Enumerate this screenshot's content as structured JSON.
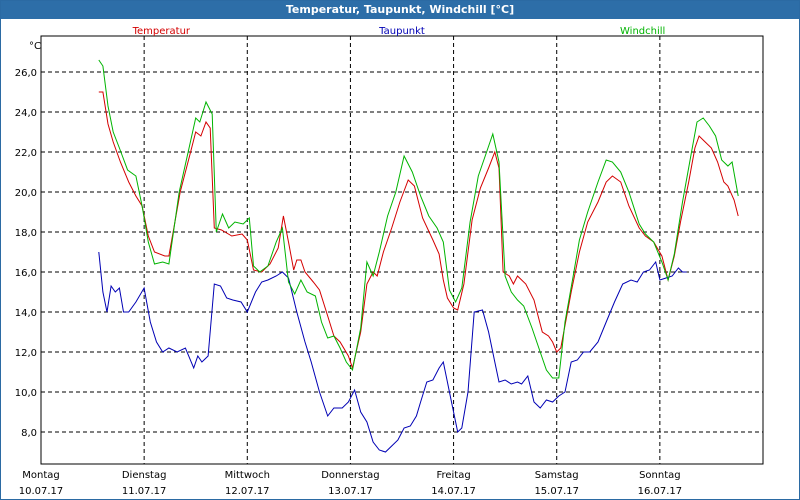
{
  "window": {
    "title": "Temperatur, Taupunkt, Windchill [°C]"
  },
  "chart_data": {
    "type": "line",
    "ylabel": "°C",
    "ylim": [
      6.4,
      27.8
    ],
    "yticks": [
      "8,0",
      "10,0",
      "12,0",
      "14,0",
      "16,0",
      "18,0",
      "20,0",
      "22,0",
      "24,0",
      "26,0"
    ],
    "ytick_values": [
      8,
      10,
      12,
      14,
      16,
      18,
      20,
      22,
      24,
      26
    ],
    "xlim": [
      0,
      7
    ],
    "x_days": [
      {
        "day": "Montag",
        "date": "10.07.17"
      },
      {
        "day": "Dienstag",
        "date": "11.07.17"
      },
      {
        "day": "Mittwoch",
        "date": "12.07.17"
      },
      {
        "day": "Donnerstag",
        "date": "13.07.17"
      },
      {
        "day": "Freitag",
        "date": "14.07.17"
      },
      {
        "day": "Samstag",
        "date": "15.07.17"
      },
      {
        "day": "Sonntag",
        "date": "16.07.17"
      }
    ],
    "grid": true,
    "x_unit": "days since 10.07.17 00:00",
    "series": [
      {
        "name": "Temperatur",
        "color": "#d40000",
        "points": [
          [
            0.56,
            25.0
          ],
          [
            0.6,
            25.0
          ],
          [
            0.65,
            23.4
          ],
          [
            0.7,
            22.5
          ],
          [
            0.77,
            21.5
          ],
          [
            0.85,
            20.5
          ],
          [
            0.92,
            19.8
          ],
          [
            0.98,
            19.3
          ],
          [
            1.04,
            17.8
          ],
          [
            1.1,
            17.0
          ],
          [
            1.2,
            16.8
          ],
          [
            1.24,
            16.8
          ],
          [
            1.35,
            20.0
          ],
          [
            1.45,
            22.0
          ],
          [
            1.5,
            23.0
          ],
          [
            1.55,
            22.8
          ],
          [
            1.6,
            23.5
          ],
          [
            1.64,
            23.2
          ],
          [
            1.68,
            18.2
          ],
          [
            1.75,
            18.1
          ],
          [
            1.85,
            17.8
          ],
          [
            1.95,
            17.9
          ],
          [
            2.0,
            17.6
          ],
          [
            2.06,
            16.1
          ],
          [
            2.14,
            16.0
          ],
          [
            2.22,
            16.4
          ],
          [
            2.3,
            17.2
          ],
          [
            2.35,
            18.8
          ],
          [
            2.4,
            17.5
          ],
          [
            2.45,
            16.1
          ],
          [
            2.48,
            16.6
          ],
          [
            2.52,
            16.6
          ],
          [
            2.56,
            16.0
          ],
          [
            2.64,
            15.5
          ],
          [
            2.7,
            15.1
          ],
          [
            2.78,
            13.8
          ],
          [
            2.84,
            12.8
          ],
          [
            2.9,
            12.5
          ],
          [
            2.98,
            11.8
          ],
          [
            3.02,
            11.2
          ],
          [
            3.1,
            13.0
          ],
          [
            3.16,
            15.4
          ],
          [
            3.22,
            16.0
          ],
          [
            3.26,
            15.8
          ],
          [
            3.32,
            17.0
          ],
          [
            3.4,
            18.2
          ],
          [
            3.48,
            19.5
          ],
          [
            3.56,
            20.6
          ],
          [
            3.62,
            20.3
          ],
          [
            3.7,
            18.7
          ],
          [
            3.8,
            17.6
          ],
          [
            3.86,
            16.9
          ],
          [
            3.9,
            15.6
          ],
          [
            3.94,
            14.7
          ],
          [
            4.0,
            14.2
          ],
          [
            4.04,
            14.1
          ],
          [
            4.1,
            15.4
          ],
          [
            4.18,
            18.6
          ],
          [
            4.26,
            20.2
          ],
          [
            4.34,
            21.2
          ],
          [
            4.4,
            22.0
          ],
          [
            4.44,
            21.2
          ],
          [
            4.48,
            16.0
          ],
          [
            4.54,
            15.8
          ],
          [
            4.58,
            15.4
          ],
          [
            4.62,
            15.8
          ],
          [
            4.7,
            15.4
          ],
          [
            4.78,
            14.6
          ],
          [
            4.82,
            13.8
          ],
          [
            4.86,
            13.0
          ],
          [
            4.92,
            12.8
          ],
          [
            4.96,
            12.5
          ],
          [
            5.0,
            12.0
          ],
          [
            5.04,
            12.2
          ],
          [
            5.14,
            15.0
          ],
          [
            5.22,
            17.0
          ],
          [
            5.3,
            18.5
          ],
          [
            5.4,
            19.5
          ],
          [
            5.48,
            20.5
          ],
          [
            5.54,
            20.8
          ],
          [
            5.62,
            20.5
          ],
          [
            5.7,
            19.3
          ],
          [
            5.8,
            18.2
          ],
          [
            5.86,
            17.8
          ],
          [
            5.94,
            17.5
          ],
          [
            6.02,
            16.8
          ],
          [
            6.08,
            15.6
          ],
          [
            6.14,
            16.8
          ],
          [
            6.2,
            18.5
          ],
          [
            6.28,
            20.5
          ],
          [
            6.34,
            22.2
          ],
          [
            6.38,
            22.8
          ],
          [
            6.44,
            22.5
          ],
          [
            6.5,
            22.2
          ],
          [
            6.56,
            21.5
          ],
          [
            6.62,
            20.5
          ],
          [
            6.66,
            20.3
          ],
          [
            6.72,
            19.6
          ],
          [
            6.76,
            18.8
          ]
        ]
      },
      {
        "name": "Taupunkt",
        "color": "#0000b4",
        "points": [
          [
            0.56,
            17.0
          ],
          [
            0.6,
            15.0
          ],
          [
            0.64,
            14.0
          ],
          [
            0.68,
            15.3
          ],
          [
            0.72,
            15.0
          ],
          [
            0.76,
            15.2
          ],
          [
            0.8,
            14.0
          ],
          [
            0.85,
            14.0
          ],
          [
            0.92,
            14.5
          ],
          [
            1.0,
            15.2
          ],
          [
            1.06,
            13.5
          ],
          [
            1.12,
            12.5
          ],
          [
            1.18,
            12.0
          ],
          [
            1.24,
            12.2
          ],
          [
            1.32,
            12.0
          ],
          [
            1.4,
            12.2
          ],
          [
            1.48,
            11.2
          ],
          [
            1.52,
            11.8
          ],
          [
            1.56,
            11.5
          ],
          [
            1.62,
            11.8
          ],
          [
            1.68,
            15.4
          ],
          [
            1.74,
            15.3
          ],
          [
            1.8,
            14.7
          ],
          [
            1.86,
            14.6
          ],
          [
            1.94,
            14.5
          ],
          [
            2.0,
            14.0
          ],
          [
            2.08,
            15.0
          ],
          [
            2.14,
            15.5
          ],
          [
            2.2,
            15.6
          ],
          [
            2.28,
            15.8
          ],
          [
            2.34,
            16.0
          ],
          [
            2.4,
            15.7
          ],
          [
            2.48,
            14.0
          ],
          [
            2.56,
            12.5
          ],
          [
            2.62,
            11.5
          ],
          [
            2.7,
            10.0
          ],
          [
            2.78,
            8.8
          ],
          [
            2.84,
            9.2
          ],
          [
            2.92,
            9.2
          ],
          [
            2.98,
            9.5
          ],
          [
            3.04,
            10.1
          ],
          [
            3.1,
            9.0
          ],
          [
            3.16,
            8.5
          ],
          [
            3.22,
            7.5
          ],
          [
            3.28,
            7.1
          ],
          [
            3.34,
            7.0
          ],
          [
            3.4,
            7.3
          ],
          [
            3.46,
            7.6
          ],
          [
            3.52,
            8.2
          ],
          [
            3.58,
            8.3
          ],
          [
            3.64,
            8.8
          ],
          [
            3.68,
            9.5
          ],
          [
            3.74,
            10.5
          ],
          [
            3.8,
            10.6
          ],
          [
            3.86,
            11.2
          ],
          [
            3.9,
            11.5
          ],
          [
            3.94,
            10.5
          ],
          [
            3.98,
            9.5
          ],
          [
            4.04,
            8.0
          ],
          [
            4.08,
            8.2
          ],
          [
            4.14,
            10.0
          ],
          [
            4.2,
            14.0
          ],
          [
            4.28,
            14.1
          ],
          [
            4.34,
            13.0
          ],
          [
            4.4,
            11.5
          ],
          [
            4.44,
            10.5
          ],
          [
            4.5,
            10.6
          ],
          [
            4.56,
            10.4
          ],
          [
            4.62,
            10.5
          ],
          [
            4.66,
            10.4
          ],
          [
            4.72,
            10.8
          ],
          [
            4.78,
            9.5
          ],
          [
            4.84,
            9.2
          ],
          [
            4.9,
            9.6
          ],
          [
            4.96,
            9.5
          ],
          [
            5.02,
            9.8
          ],
          [
            5.08,
            10.0
          ],
          [
            5.14,
            11.5
          ],
          [
            5.2,
            11.6
          ],
          [
            5.26,
            12.0
          ],
          [
            5.32,
            12.0
          ],
          [
            5.4,
            12.5
          ],
          [
            5.48,
            13.5
          ],
          [
            5.56,
            14.5
          ],
          [
            5.64,
            15.4
          ],
          [
            5.72,
            15.6
          ],
          [
            5.78,
            15.5
          ],
          [
            5.84,
            16.0
          ],
          [
            5.9,
            16.1
          ],
          [
            5.96,
            16.5
          ],
          [
            6.0,
            15.6
          ],
          [
            6.06,
            15.7
          ],
          [
            6.12,
            15.8
          ],
          [
            6.18,
            16.2
          ],
          [
            6.22,
            16.0
          ],
          [
            6.26,
            16.0
          ]
        ]
      },
      {
        "name": "Windchill",
        "color": "#00b400",
        "points": [
          [
            0.56,
            26.6
          ],
          [
            0.6,
            26.3
          ],
          [
            0.65,
            24.3
          ],
          [
            0.7,
            23.0
          ],
          [
            0.76,
            22.2
          ],
          [
            0.84,
            21.1
          ],
          [
            0.92,
            20.8
          ],
          [
            0.98,
            19.3
          ],
          [
            1.04,
            17.5
          ],
          [
            1.1,
            16.4
          ],
          [
            1.18,
            16.5
          ],
          [
            1.24,
            16.4
          ],
          [
            1.34,
            20.0
          ],
          [
            1.44,
            22.3
          ],
          [
            1.5,
            23.7
          ],
          [
            1.54,
            23.5
          ],
          [
            1.6,
            24.5
          ],
          [
            1.66,
            23.9
          ],
          [
            1.7,
            18.0
          ],
          [
            1.76,
            18.9
          ],
          [
            1.82,
            18.2
          ],
          [
            1.88,
            18.5
          ],
          [
            1.96,
            18.4
          ],
          [
            2.02,
            18.7
          ],
          [
            2.06,
            16.3
          ],
          [
            2.12,
            16.0
          ],
          [
            2.2,
            16.3
          ],
          [
            2.28,
            17.5
          ],
          [
            2.34,
            18.2
          ],
          [
            2.4,
            15.5
          ],
          [
            2.46,
            14.9
          ],
          [
            2.52,
            15.6
          ],
          [
            2.58,
            15.0
          ],
          [
            2.66,
            14.8
          ],
          [
            2.72,
            13.5
          ],
          [
            2.78,
            12.7
          ],
          [
            2.84,
            12.8
          ],
          [
            2.9,
            12.2
          ],
          [
            2.96,
            11.5
          ],
          [
            3.02,
            11.1
          ],
          [
            3.1,
            13.2
          ],
          [
            3.16,
            16.5
          ],
          [
            3.22,
            15.8
          ],
          [
            3.28,
            17.0
          ],
          [
            3.36,
            18.8
          ],
          [
            3.44,
            20.0
          ],
          [
            3.52,
            21.8
          ],
          [
            3.6,
            21.0
          ],
          [
            3.68,
            19.8
          ],
          [
            3.76,
            18.8
          ],
          [
            3.84,
            18.2
          ],
          [
            3.9,
            17.5
          ],
          [
            3.96,
            15.1
          ],
          [
            4.02,
            14.5
          ],
          [
            4.08,
            15.2
          ],
          [
            4.16,
            18.5
          ],
          [
            4.24,
            20.8
          ],
          [
            4.32,
            22.0
          ],
          [
            4.38,
            22.9
          ],
          [
            4.44,
            21.5
          ],
          [
            4.5,
            15.8
          ],
          [
            4.56,
            15.0
          ],
          [
            4.62,
            14.6
          ],
          [
            4.68,
            14.3
          ],
          [
            4.76,
            13.2
          ],
          [
            4.84,
            12.0
          ],
          [
            4.9,
            11.1
          ],
          [
            4.96,
            10.7
          ],
          [
            5.02,
            10.7
          ],
          [
            5.08,
            13.5
          ],
          [
            5.16,
            15.8
          ],
          [
            5.22,
            17.6
          ],
          [
            5.3,
            19.0
          ],
          [
            5.4,
            20.5
          ],
          [
            5.48,
            21.6
          ],
          [
            5.54,
            21.5
          ],
          [
            5.62,
            21.0
          ],
          [
            5.7,
            20.0
          ],
          [
            5.8,
            18.4
          ],
          [
            5.86,
            17.9
          ],
          [
            5.94,
            17.5
          ],
          [
            6.02,
            16.5
          ],
          [
            6.08,
            15.6
          ],
          [
            6.14,
            16.9
          ],
          [
            6.22,
            19.5
          ],
          [
            6.3,
            21.8
          ],
          [
            6.36,
            23.5
          ],
          [
            6.42,
            23.7
          ],
          [
            6.48,
            23.3
          ],
          [
            6.54,
            22.8
          ],
          [
            6.6,
            21.6
          ],
          [
            6.66,
            21.3
          ],
          [
            6.7,
            21.5
          ],
          [
            6.76,
            19.8
          ]
        ]
      }
    ]
  }
}
